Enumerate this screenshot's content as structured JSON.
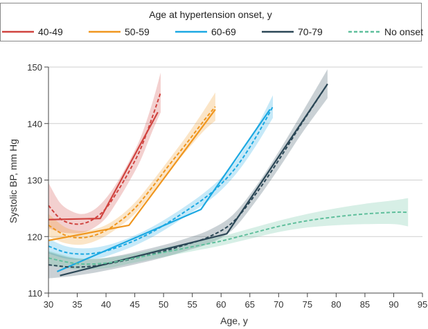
{
  "chart_data": {
    "type": "line",
    "legend": {
      "title": "Age at hypertension onset, y",
      "placement": "top",
      "entries": [
        {
          "label": "40-49",
          "color": "#d0433f",
          "style": "solid"
        },
        {
          "label": "50-59",
          "color": "#f0961e",
          "style": "solid"
        },
        {
          "label": "60-69",
          "color": "#1ba8e2",
          "style": "solid"
        },
        {
          "label": "70-79",
          "color": "#2b4756",
          "style": "solid"
        },
        {
          "label": "No onset",
          "color": "#5fbf9c",
          "style": "dashed"
        }
      ]
    },
    "xlabel": "Age, y",
    "ylabel": "Systolic BP, mm Hg",
    "xlim": [
      30,
      95
    ],
    "ylim": [
      110,
      150
    ],
    "xticks": [
      30,
      35,
      40,
      45,
      50,
      55,
      60,
      65,
      70,
      75,
      80,
      85,
      90,
      95
    ],
    "yticks": [
      110,
      120,
      130,
      140,
      150
    ],
    "grid": "horizontal",
    "series": [
      {
        "name": "40-49",
        "color": "#d0433f",
        "solid": {
          "x": [
            30,
            39,
            49
          ],
          "y": [
            123,
            123.2,
            142
          ]
        },
        "dashed": {
          "x": [
            30,
            32,
            34,
            36,
            38,
            40,
            42,
            44,
            46,
            48,
            49.5
          ],
          "y": [
            125.5,
            123.2,
            122.3,
            122.3,
            123.2,
            125,
            128,
            131.5,
            135.5,
            141,
            145.5
          ]
        },
        "band": {
          "x": [
            30,
            32,
            34,
            36,
            38,
            40,
            42,
            44,
            46,
            48,
            49.5
          ],
          "upper": [
            129.5,
            126,
            124.5,
            124,
            124.8,
            126.8,
            129.7,
            133.3,
            137.5,
            143.5,
            149
          ],
          "lower": [
            121.5,
            120.8,
            120.6,
            120.7,
            121.6,
            123.3,
            126.3,
            129.7,
            133.5,
            138.5,
            142
          ]
        }
      },
      {
        "name": "50-59",
        "color": "#f0961e",
        "solid": {
          "x": [
            30,
            44,
            59
          ],
          "y": [
            119.3,
            122,
            142.5
          ]
        },
        "dashed": {
          "x": [
            30,
            33,
            36,
            39,
            42,
            45,
            48,
            51,
            54,
            57,
            59
          ],
          "y": [
            122,
            120.2,
            119.8,
            120.6,
            122.4,
            125,
            128.7,
            132.7,
            136.5,
            140.5,
            143
          ]
        },
        "band": {
          "x": [
            30,
            33,
            36,
            39,
            42,
            45,
            48,
            51,
            54,
            57,
            59
          ],
          "upper": [
            124,
            121.6,
            121,
            121.6,
            123.3,
            126,
            129.7,
            133.7,
            137.8,
            142.3,
            145.5
          ],
          "lower": [
            120,
            118.8,
            118.6,
            119.6,
            121.5,
            124,
            127.7,
            131.7,
            135.2,
            138.7,
            140.5
          ]
        }
      },
      {
        "name": "60-69",
        "color": "#1ba8e2",
        "solid": {
          "x": [
            31.5,
            56.5,
            68.5
          ],
          "y": [
            113.8,
            124.8,
            142.5
          ]
        },
        "dashed": {
          "x": [
            30,
            33,
            36,
            39,
            42,
            45,
            48,
            51,
            54,
            57,
            60,
            63,
            66,
            69
          ],
          "y": [
            118.3,
            117.2,
            116.9,
            117.2,
            118.1,
            119.3,
            120.8,
            122.6,
            124.6,
            126.7,
            129.3,
            132.8,
            137.5,
            143
          ]
        },
        "band": {
          "x": [
            30,
            33,
            36,
            39,
            42,
            45,
            48,
            51,
            54,
            57,
            60,
            63,
            66,
            69
          ],
          "upper": [
            119.6,
            118.3,
            117.9,
            118.2,
            119,
            120.2,
            121.7,
            123.5,
            125.5,
            127.7,
            130.4,
            134,
            139,
            145
          ],
          "lower": [
            117,
            116.1,
            115.9,
            116.2,
            117.2,
            118.4,
            119.9,
            121.7,
            123.7,
            125.7,
            128.2,
            131.6,
            136,
            141
          ]
        }
      },
      {
        "name": "70-79",
        "color": "#2b4756",
        "solid": {
          "x": [
            32,
            61,
            78.5
          ],
          "y": [
            113.1,
            120.5,
            147
          ]
        },
        "dashed": {
          "x": [
            30,
            34,
            38,
            42,
            46,
            50,
            54,
            58,
            62,
            66,
            70,
            74,
            78.5
          ],
          "y": [
            115,
            114.6,
            114.8,
            115.5,
            116.4,
            117.4,
            118.6,
            120,
            122.5,
            127.5,
            133.5,
            140,
            147
          ]
        },
        "band": {
          "x": [
            30,
            34,
            38,
            42,
            46,
            50,
            54,
            58,
            62,
            66,
            70,
            74,
            78.5
          ],
          "upper": [
            117.3,
            116.2,
            116,
            116.6,
            117.5,
            118.5,
            119.7,
            121.2,
            123.8,
            128.8,
            135,
            141.8,
            149.6
          ],
          "lower": [
            112.6,
            113,
            113.6,
            114.4,
            115.3,
            116.3,
            117.5,
            118.8,
            121.2,
            126.2,
            132,
            138.2,
            144.5
          ]
        }
      },
      {
        "name": "No onset",
        "color": "#5fbf9c",
        "dashed": {
          "x": [
            30,
            35,
            40,
            45,
            50,
            55,
            60,
            65,
            70,
            75,
            80,
            85,
            90,
            92.5
          ],
          "y": [
            116.2,
            115.2,
            115.3,
            116.2,
            117.2,
            118.2,
            119.2,
            120.5,
            121.8,
            122.8,
            123.5,
            124,
            124.3,
            124.3
          ]
        },
        "band": {
          "x": [
            30,
            35,
            40,
            45,
            50,
            55,
            60,
            65,
            70,
            75,
            80,
            85,
            90,
            92.5
          ],
          "upper": [
            117.5,
            116.2,
            116.2,
            117,
            118,
            119,
            120,
            121.4,
            122.8,
            124,
            125,
            125.8,
            126.4,
            126.8
          ],
          "lower": [
            114.9,
            114.2,
            114.4,
            115.4,
            116.4,
            117.4,
            118.4,
            119.6,
            120.8,
            121.6,
            122,
            122.2,
            122.2,
            121.8
          ]
        }
      }
    ]
  }
}
